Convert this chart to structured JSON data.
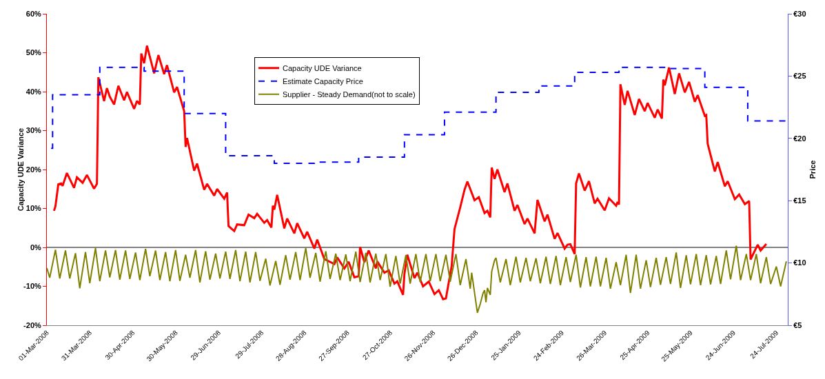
{
  "chart_data": {
    "type": "line",
    "ylabel": "Capacity UDE Variance",
    "y2label": "Price",
    "xlim": [
      "2008-03-01",
      "2009-08-01"
    ],
    "xticks": [
      {
        "value": "2008-03-01",
        "label": "01-Mar-2008"
      },
      {
        "value": "2008-03-31",
        "label": "31-Mar-2008"
      },
      {
        "value": "2008-04-30",
        "label": "30-Apr-2008"
      },
      {
        "value": "2008-05-30",
        "label": "30-May-2008"
      },
      {
        "value": "2008-06-29",
        "label": "29-Jun-2008"
      },
      {
        "value": "2008-07-29",
        "label": "29-Jul-2008"
      },
      {
        "value": "2008-08-28",
        "label": "28-Aug-2008"
      },
      {
        "value": "2008-09-27",
        "label": "27-Sep-2008"
      },
      {
        "value": "2008-10-27",
        "label": "27-Oct-2008"
      },
      {
        "value": "2008-11-26",
        "label": "26-Nov-2008"
      },
      {
        "value": "2008-12-26",
        "label": "26-Dec-2008"
      },
      {
        "value": "2009-01-25",
        "label": "25-Jan-2009"
      },
      {
        "value": "2009-02-24",
        "label": "24-Feb-2009"
      },
      {
        "value": "2009-03-26",
        "label": "26-Mar-2009"
      },
      {
        "value": "2009-04-25",
        "label": "25-Apr-2009"
      },
      {
        "value": "2009-05-25",
        "label": "25-May-2009"
      },
      {
        "value": "2009-06-24",
        "label": "24-Jun-2009"
      },
      {
        "value": "2009-07-24",
        "label": "24-Jul-2009"
      }
    ],
    "ylim": [
      -20,
      60
    ],
    "yticks": [
      {
        "value": -20,
        "label": "-20%"
      },
      {
        "value": -10,
        "label": "-10%"
      },
      {
        "value": 0,
        "label": "0%"
      },
      {
        "value": 10,
        "label": "10%"
      },
      {
        "value": 20,
        "label": "20%"
      },
      {
        "value": 30,
        "label": "30%"
      },
      {
        "value": 40,
        "label": "40%"
      },
      {
        "value": 50,
        "label": "50%"
      },
      {
        "value": 60,
        "label": "60%"
      }
    ],
    "y2lim": [
      5,
      30
    ],
    "y2ticks": [
      {
        "value": 5,
        "label": "€5"
      },
      {
        "value": 10,
        "label": "€10"
      },
      {
        "value": 15,
        "label": "€15"
      },
      {
        "value": 20,
        "label": "€20"
      },
      {
        "value": 25,
        "label": "€25"
      },
      {
        "value": 30,
        "label": "€30"
      }
    ],
    "legend": "top",
    "ref_lines": [
      {
        "axis": "y",
        "value": 0,
        "color": "#808080"
      }
    ],
    "series": [
      {
        "name": "Capacity UDE Variance",
        "color": "#ff0000",
        "x": [
          "2008-03-06",
          "2008-03-07",
          "2008-03-09",
          "2008-03-11",
          "2008-03-12",
          "2008-03-15",
          "2008-03-20",
          "2008-03-22",
          "2008-03-26",
          "2008-03-29",
          "2008-04-03",
          "2008-04-05",
          "2008-04-06",
          "2008-04-10",
          "2008-04-12",
          "2008-04-14",
          "2008-04-17",
          "2008-04-20",
          "2008-04-24",
          "2008-04-26",
          "2008-05-01",
          "2008-05-03",
          "2008-05-05",
          "2008-05-06",
          "2008-05-08",
          "2008-05-10",
          "2008-05-15",
          "2008-05-18",
          "2008-05-22",
          "2008-05-24",
          "2008-05-29",
          "2008-05-31",
          "2008-06-05",
          "2008-06-06",
          "2008-06-07",
          "2008-06-12",
          "2008-06-14",
          "2008-06-19",
          "2008-06-21",
          "2008-06-26",
          "2008-06-28",
          "2008-07-03",
          "2008-07-05",
          "2008-07-06",
          "2008-07-10",
          "2008-07-12",
          "2008-07-17",
          "2008-07-20",
          "2008-07-24",
          "2008-07-26",
          "2008-07-31",
          "2008-08-02",
          "2008-08-05",
          "2008-08-06",
          "2008-08-07",
          "2008-08-09",
          "2008-08-14",
          "2008-08-16",
          "2008-08-21",
          "2008-08-23",
          "2008-08-28",
          "2008-08-30",
          "2008-09-04",
          "2008-09-06",
          "2008-09-11",
          "2008-09-18",
          "2008-09-20",
          "2008-09-25",
          "2008-09-28",
          "2008-10-02",
          "2008-10-05",
          "2008-10-06",
          "2008-10-09",
          "2008-10-12",
          "2008-10-17",
          "2008-10-18",
          "2008-10-23",
          "2008-10-26",
          "2008-10-30",
          "2008-11-01",
          "2008-11-05",
          "2008-11-06",
          "2008-11-08",
          "2008-11-13",
          "2008-11-15",
          "2008-11-19",
          "2008-11-23",
          "2008-11-27",
          "2008-11-30",
          "2008-12-03",
          "2008-12-05",
          "2008-12-09",
          "2008-12-11",
          "2008-12-15",
          "2008-12-18",
          "2008-12-20",
          "2008-12-25",
          "2008-12-28",
          "2009-01-01",
          "2009-01-03",
          "2009-01-05",
          "2009-01-06",
          "2009-01-08",
          "2009-01-10",
          "2009-01-15",
          "2009-01-17",
          "2009-01-22",
          "2009-01-24",
          "2009-01-29",
          "2009-01-31",
          "2009-02-05",
          "2009-02-07",
          "2009-02-12",
          "2009-02-14",
          "2009-02-19",
          "2009-02-21",
          "2009-02-26",
          "2009-02-28",
          "2009-03-02",
          "2009-03-05",
          "2009-03-06",
          "2009-03-08",
          "2009-03-12",
          "2009-03-15",
          "2009-03-19",
          "2009-03-21",
          "2009-03-26",
          "2009-03-29",
          "2009-04-03",
          "2009-04-04",
          "2009-04-05",
          "2009-04-06",
          "2009-04-09",
          "2009-04-11",
          "2009-04-16",
          "2009-04-19",
          "2009-04-23",
          "2009-04-25",
          "2009-04-30",
          "2009-05-02",
          "2009-05-05",
          "2009-05-06",
          "2009-05-07",
          "2009-05-10",
          "2009-05-14",
          "2009-05-17",
          "2009-05-21",
          "2009-05-24",
          "2009-05-28",
          "2009-05-30",
          "2009-06-04",
          "2009-06-05",
          "2009-06-06",
          "2009-06-11",
          "2009-06-13",
          "2009-06-18",
          "2009-06-20",
          "2009-06-25",
          "2009-06-28",
          "2009-07-02",
          "2009-07-05",
          "2009-07-06",
          "2009-07-11",
          "2009-07-13",
          "2009-07-17"
        ],
        "values": [
          9.4,
          10.6,
          16.2,
          16.4,
          15.8,
          19.1,
          15.3,
          18.0,
          16.6,
          18.6,
          15.1,
          16.3,
          43.7,
          37.6,
          40.9,
          38.7,
          36.7,
          41.5,
          37.8,
          39.9,
          35.6,
          37.6,
          36.7,
          49.8,
          47.3,
          51.8,
          44.7,
          49.4,
          44.5,
          46.8,
          39.8,
          41.2,
          35.0,
          25.8,
          28.1,
          19.7,
          21.5,
          14.8,
          16.3,
          13.3,
          15.0,
          12.5,
          14.1,
          5.5,
          4.2,
          5.9,
          5.7,
          8.4,
          7.5,
          8.6,
          6.3,
          7.0,
          5.1,
          10.7,
          9.7,
          13.5,
          4.9,
          7.4,
          3.6,
          6.2,
          2.3,
          4.0,
          -0.3,
          2.0,
          -3.0,
          -4.3,
          -2.6,
          -5.4,
          -3.7,
          -7.7,
          -7.4,
          0.1,
          -3.8,
          -0.8,
          -5.4,
          -3.6,
          -6.5,
          -5.9,
          -9.3,
          -8.7,
          -12.2,
          -6.8,
          -1.9,
          -7.9,
          -6.5,
          -10.0,
          -8.8,
          -12.0,
          -11.0,
          -13.3,
          -13.1,
          -4.8,
          4.7,
          10.3,
          14.8,
          16.9,
          12.1,
          12.9,
          8.8,
          9.4,
          7.7,
          20.5,
          17.6,
          20.0,
          14.2,
          16.4,
          9.4,
          10.9,
          6.0,
          7.4,
          3.6,
          12.2,
          6.7,
          8.4,
          2.2,
          3.7,
          -0.3,
          0.7,
          0.8,
          -1.7,
          16.4,
          19.0,
          14.6,
          17.0,
          11.3,
          12.5,
          9.5,
          12.6,
          10.7,
          11.7,
          11.0,
          41.9,
          36.6,
          40.2,
          34.0,
          38.1,
          35.0,
          37.1,
          33.3,
          35.4,
          33.1,
          43.1,
          41.6,
          46.2,
          39.4,
          44.7,
          39.8,
          42.5,
          37.4,
          39.1,
          33.8,
          34.0,
          26.6,
          19.5,
          21.9,
          15.7,
          17.0,
          12.4,
          13.6,
          11.1,
          11.9,
          -3.1,
          0.7,
          -0.8,
          0.9
        ]
      },
      {
        "name": "Estimate Capacity Price",
        "color": "#0000ff",
        "type": "step",
        "axis": "y2",
        "line_style": "dashed",
        "x": [
          "2008-03-04",
          "2008-03-05",
          "2008-04-07",
          "2008-05-08",
          "2008-06-05",
          "2008-07-04",
          "2008-08-07",
          "2008-09-04",
          "2008-10-05",
          "2008-11-06",
          "2008-12-04",
          "2009-01-09",
          "2009-02-08",
          "2009-03-05",
          "2009-04-05",
          "2009-05-08",
          "2009-06-04",
          "2009-07-04",
          "2009-07-31"
        ],
        "values": [
          19.2,
          23.5,
          25.7,
          25.4,
          22.0,
          18.6,
          18.0,
          18.1,
          18.5,
          20.3,
          22.1,
          23.7,
          24.2,
          25.3,
          25.7,
          25.6,
          24.1,
          21.4,
          21.4
        ]
      },
      {
        "name": "Supplier - Steady Demand(not to scale)",
        "color": "#808000",
        "x": [
          "2008-03-01",
          "2008-03-03",
          "2008-03-07",
          "2008-03-10",
          "2008-03-14",
          "2008-03-17",
          "2008-03-21",
          "2008-03-24",
          "2008-03-28",
          "2008-03-31",
          "2008-04-04",
          "2008-04-07",
          "2008-04-11",
          "2008-04-14",
          "2008-04-18",
          "2008-04-21",
          "2008-04-25",
          "2008-04-28",
          "2008-05-02",
          "2008-05-05",
          "2008-05-09",
          "2008-05-12",
          "2008-05-16",
          "2008-05-19",
          "2008-05-23",
          "2008-05-26",
          "2008-05-30",
          "2008-06-02",
          "2008-06-06",
          "2008-06-09",
          "2008-06-13",
          "2008-06-16",
          "2008-06-20",
          "2008-06-23",
          "2008-06-27",
          "2008-06-30",
          "2008-07-04",
          "2008-07-07",
          "2008-07-11",
          "2008-07-14",
          "2008-07-18",
          "2008-07-21",
          "2008-07-25",
          "2008-07-28",
          "2008-08-01",
          "2008-08-04",
          "2008-08-08",
          "2008-08-11",
          "2008-08-15",
          "2008-08-18",
          "2008-08-22",
          "2008-08-25",
          "2008-08-29",
          "2008-09-01",
          "2008-09-05",
          "2008-09-08",
          "2008-09-12",
          "2008-09-15",
          "2008-09-19",
          "2008-09-22",
          "2008-09-26",
          "2008-09-29",
          "2008-10-03",
          "2008-10-06",
          "2008-10-10",
          "2008-10-13",
          "2008-10-17",
          "2008-10-20",
          "2008-10-24",
          "2008-10-27",
          "2008-10-31",
          "2008-11-03",
          "2008-11-07",
          "2008-11-10",
          "2008-11-14",
          "2008-11-17",
          "2008-11-21",
          "2008-11-24",
          "2008-11-28",
          "2008-12-01",
          "2008-12-05",
          "2008-12-08",
          "2008-12-12",
          "2008-12-15",
          "2008-12-19",
          "2008-12-22",
          "2008-12-23",
          "2008-12-27",
          "2008-12-29",
          "2008-12-31",
          "2009-01-01",
          "2009-01-02",
          "2009-01-03",
          "2009-01-05",
          "2009-01-06",
          "2009-01-08",
          "2009-01-09",
          "2009-01-12",
          "2009-01-16",
          "2009-01-19",
          "2009-01-23",
          "2009-01-26",
          "2009-01-30",
          "2009-02-02",
          "2009-02-06",
          "2009-02-09",
          "2009-02-13",
          "2009-02-16",
          "2009-02-20",
          "2009-02-23",
          "2009-02-27",
          "2009-03-02",
          "2009-03-06",
          "2009-03-09",
          "2009-03-13",
          "2009-03-16",
          "2009-03-20",
          "2009-03-23",
          "2009-03-27",
          "2009-03-30",
          "2009-04-03",
          "2009-04-06",
          "2009-04-10",
          "2009-04-13",
          "2009-04-17",
          "2009-04-20",
          "2009-04-24",
          "2009-04-27",
          "2009-05-01",
          "2009-05-04",
          "2009-05-08",
          "2009-05-11",
          "2009-05-15",
          "2009-05-18",
          "2009-05-22",
          "2009-05-25",
          "2009-05-29",
          "2009-06-01",
          "2009-06-05",
          "2009-06-08",
          "2009-06-12",
          "2009-06-15",
          "2009-06-19",
          "2009-06-22",
          "2009-06-26",
          "2009-06-29",
          "2009-07-03",
          "2009-07-06",
          "2009-07-10",
          "2009-07-13",
          "2009-07-17",
          "2009-07-20",
          "2009-07-24",
          "2009-07-27",
          "2009-07-31"
        ],
        "values": [
          -5.3,
          -7.8,
          -0.6,
          -8.0,
          -0.8,
          -8.0,
          -1.5,
          -10.5,
          -1.2,
          -9.2,
          -0.2,
          -8.7,
          -0.8,
          -7.7,
          -0.7,
          -8.3,
          -0.8,
          -8.1,
          -1.3,
          -8.4,
          -0.4,
          -7.4,
          -0.8,
          -8.4,
          -1.2,
          -8.7,
          -0.7,
          -8.6,
          -1.9,
          -7.8,
          -0.7,
          -9.0,
          -1.0,
          -8.3,
          -1.6,
          -8.0,
          -1.1,
          -8.1,
          -0.7,
          -8.7,
          -1.1,
          -9.0,
          -1.2,
          -8.6,
          -2.9,
          -9.8,
          -3.5,
          -9.6,
          -2.0,
          -8.3,
          -1.2,
          -8.4,
          -0.2,
          -7.8,
          -1.4,
          -8.8,
          -1.0,
          -8.1,
          -1.6,
          -8.4,
          -1.8,
          -8.7,
          -1.1,
          -8.9,
          -1.4,
          -9.0,
          -1.6,
          -8.4,
          -1.7,
          -10.1,
          -2.2,
          -9.3,
          -2.0,
          -9.3,
          -1.7,
          -8.9,
          -1.7,
          -8.7,
          -1.7,
          -8.7,
          -1.9,
          -8.8,
          -1.7,
          -9.7,
          -3.0,
          -10.6,
          -6.5,
          -16.8,
          -14.5,
          -11.7,
          -11.0,
          -14.1,
          -10.4,
          -12.2,
          -6.2,
          -3.3,
          -2.7,
          -9.0,
          -3.0,
          -9.7,
          -2.4,
          -9.0,
          -2.7,
          -8.7,
          -2.8,
          -9.2,
          -2.4,
          -9.4,
          -2.2,
          -9.7,
          -2.5,
          -8.9,
          -1.9,
          -10.3,
          -2.5,
          -10.0,
          -2.4,
          -10.0,
          -2.7,
          -10.6,
          -3.8,
          -9.7,
          -1.9,
          -11.7,
          -1.9,
          -10.6,
          -3.3,
          -10.2,
          -2.7,
          -9.6,
          -2.5,
          -9.4,
          -1.3,
          -10.4,
          -2.0,
          -9.5,
          -1.7,
          -9.7,
          -2.0,
          -9.5,
          -2.2,
          -9.4,
          -0.8,
          -8.2,
          0.4,
          -8.4,
          -1.7,
          -8.4,
          -1.7,
          -9.2,
          -2.5,
          -9.4,
          -4.9,
          -10.0,
          -3.6
        ]
      }
    ]
  }
}
